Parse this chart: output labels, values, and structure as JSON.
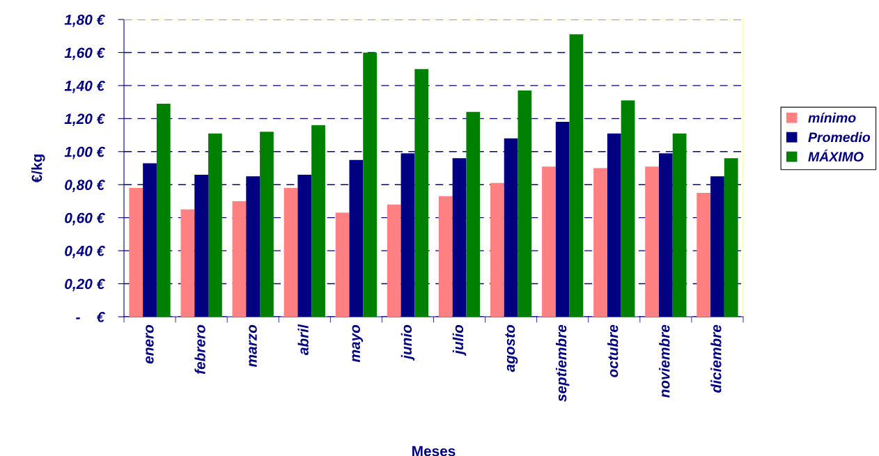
{
  "chart_data": {
    "type": "bar",
    "xlabel": "Meses",
    "ylabel": "€/kg",
    "categories": [
      "enero",
      "febrero",
      "marzo",
      "abril",
      "mayo",
      "junio",
      "julio",
      "agosto",
      "septiembre",
      "octubre",
      "noviembre",
      "diciembre"
    ],
    "series": [
      {
        "name": "mínimo",
        "color": "#ff8080",
        "values": [
          0.78,
          0.65,
          0.7,
          0.78,
          0.63,
          0.68,
          0.73,
          0.81,
          0.91,
          0.9,
          0.91,
          0.75
        ]
      },
      {
        "name": "Promedio",
        "color": "#000080",
        "values": [
          0.93,
          0.86,
          0.85,
          0.86,
          0.95,
          0.99,
          0.96,
          1.08,
          1.18,
          1.11,
          0.99,
          0.85
        ]
      },
      {
        "name": "MÁXIMO",
        "color": "#008000",
        "values": [
          1.29,
          1.11,
          1.12,
          1.16,
          1.6,
          1.5,
          1.24,
          1.37,
          1.71,
          1.31,
          1.11,
          0.96
        ]
      }
    ],
    "ylim": [
      0,
      1.8
    ],
    "yticks": [
      {
        "value": 0,
        "label": "-    €"
      },
      {
        "value": 0.2,
        "label": "0,20 €"
      },
      {
        "value": 0.4,
        "label": "0,40 €"
      },
      {
        "value": 0.6,
        "label": "0,60 €"
      },
      {
        "value": 0.8,
        "label": "0,80 €"
      },
      {
        "value": 1.0,
        "label": "1,00 €"
      },
      {
        "value": 1.2,
        "label": "1,20 €"
      },
      {
        "value": 1.4,
        "label": "1,40 €"
      },
      {
        "value": 1.6,
        "label": "1,60 €"
      },
      {
        "value": 1.8,
        "label": "1,80 €"
      }
    ],
    "grid": "y",
    "legend": "right"
  }
}
